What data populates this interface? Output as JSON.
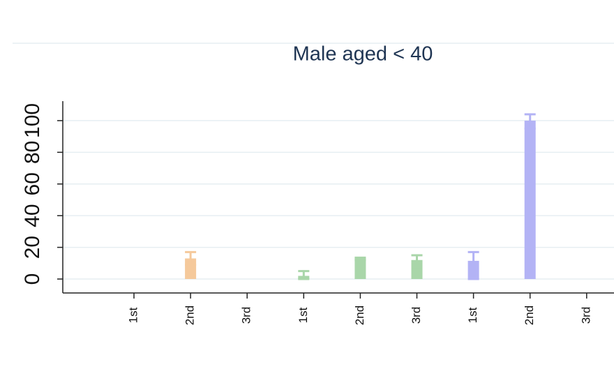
{
  "chart_data": {
    "type": "bar",
    "title": "Male aged < 40",
    "categories": [
      "1st",
      "2nd",
      "3rd",
      "1st",
      "2nd",
      "3rd",
      "1st",
      "2nd",
      "3rd"
    ],
    "values": [
      null,
      13,
      null,
      2,
      13,
      12,
      11.5,
      100,
      null
    ],
    "err_low": [
      null,
      9,
      null,
      0,
      12,
      7.5,
      0,
      95,
      null
    ],
    "err_high": [
      null,
      17,
      null,
      5,
      13.5,
      15,
      17,
      104,
      null
    ],
    "colors": [
      "#f5c99b",
      "#f5c99b",
      "#f5c99b",
      "#a9d6a9",
      "#a9d6a9",
      "#a9d6a9",
      "#b3b3f5",
      "#b3b3f5",
      "#b3b3f5"
    ],
    "ylim": [
      -8.8,
      112.3
    ],
    "yticks": [
      0,
      20,
      40,
      60,
      80,
      100
    ],
    "grid": true
  }
}
